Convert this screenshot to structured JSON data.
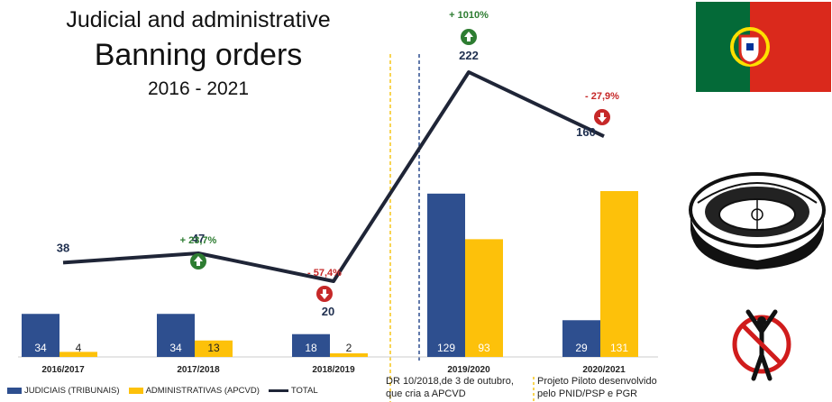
{
  "title": {
    "line1": "Judicial and administrative",
    "line2": "Banning orders",
    "line3": "2016 - 2021"
  },
  "colors": {
    "judiciais": "#2e4f8f",
    "administrativas": "#fdc10a",
    "total": "#1f2537",
    "increase": "#2e7d32",
    "decrease": "#c62828",
    "separator_yellow": "#f5c518",
    "separator_blue": "#2e4f8f"
  },
  "chart_data": {
    "type": "bar",
    "categories": [
      "2016/2017",
      "2017/2018",
      "2018/2019",
      "2019/2020",
      "2020/2021"
    ],
    "series": [
      {
        "name": "JUDICIAIS (TRIBUNAIS)",
        "values": [
          34,
          34,
          18,
          129,
          29
        ]
      },
      {
        "name": "ADMINISTRATIVAS (APCVD)",
        "values": [
          4,
          13,
          2,
          93,
          131
        ]
      }
    ],
    "line": {
      "name": "TOTAL",
      "values": [
        38,
        47,
        20,
        222,
        160
      ]
    },
    "changes": [
      {
        "category": "2017/2018",
        "label": "+ 23,7%",
        "direction": "up"
      },
      {
        "category": "2018/2019",
        "label": "- 57,4%",
        "direction": "down"
      },
      {
        "category": "2019/2020",
        "label": "+ 1010%",
        "direction": "up"
      },
      {
        "category": "2020/2021",
        "label": "- 27,9%",
        "direction": "down"
      }
    ]
  },
  "notes": {
    "note1": [
      "DR 10/2018,de 3 de outubro,",
      "que cria a APCVD"
    ],
    "note2": [
      "Projeto Piloto desenvolvido",
      "pelo PNID/PSP e PGR"
    ]
  },
  "legend": {
    "judiciais": "JUDICIAIS (TRIBUNAIS)",
    "administrativas": "ADMINISTRATIVAS (APCVD)",
    "total": "TOTAL"
  },
  "icons": [
    "portugal-flag-icon",
    "stadium-icon",
    "no-fans-icon"
  ]
}
